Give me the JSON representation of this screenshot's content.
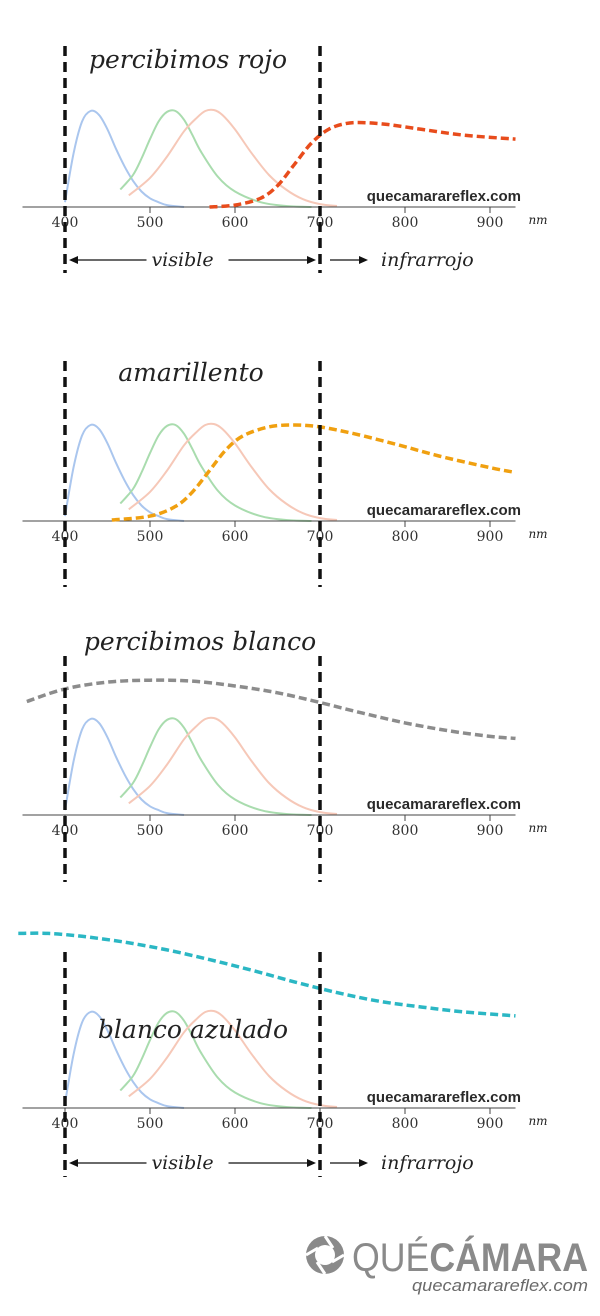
{
  "chart_data": [
    {
      "type": "line",
      "title": "percibimos rojo",
      "xlabel": "nm",
      "x_ticks": [
        400,
        500,
        600,
        700,
        800,
        900
      ],
      "xlim": [
        350,
        930
      ],
      "watermark": "quecamarareflex.com",
      "range_labels": {
        "visible": "visible",
        "infrared": "infrarrojo"
      },
      "series": [
        {
          "color": "#e84c1c",
          "dashed": true,
          "x": [
            570,
            600,
            630,
            650,
            670,
            690,
            710,
            730,
            750,
            780,
            820,
            870,
            930
          ],
          "y": [
            0.0,
            0.02,
            0.09,
            0.22,
            0.44,
            0.66,
            0.8,
            0.86,
            0.87,
            0.85,
            0.8,
            0.74,
            0.7
          ]
        }
      ]
    },
    {
      "type": "line",
      "title": "amarillento",
      "xlabel": "nm",
      "x_ticks": [
        400,
        500,
        600,
        700,
        800,
        900
      ],
      "xlim": [
        350,
        930
      ],
      "watermark": "quecamarareflex.com",
      "series": [
        {
          "color": "#f0a010",
          "dashed": true,
          "x": [
            455,
            500,
            530,
            550,
            570,
            590,
            610,
            640,
            670,
            700,
            740,
            790,
            840,
            900,
            930
          ],
          "y": [
            0.01,
            0.05,
            0.15,
            0.3,
            0.52,
            0.74,
            0.88,
            0.97,
            0.99,
            0.97,
            0.9,
            0.79,
            0.67,
            0.55,
            0.5
          ]
        }
      ]
    },
    {
      "type": "line",
      "title": "percibimos blanco",
      "xlabel": "nm",
      "x_ticks": [
        400,
        500,
        600,
        700,
        800,
        900
      ],
      "xlim": [
        350,
        930
      ],
      "watermark": "quecamarareflex.com",
      "series": [
        {
          "color": "#8c8c8c",
          "dashed": true,
          "x": [
            355,
            400,
            450,
            500,
            550,
            600,
            650,
            700,
            750,
            800,
            850,
            900,
            930
          ],
          "y": [
            1.17,
            1.3,
            1.37,
            1.39,
            1.38,
            1.33,
            1.26,
            1.16,
            1.05,
            0.95,
            0.87,
            0.81,
            0.79
          ]
        }
      ]
    },
    {
      "type": "line",
      "title": "blanco azulado",
      "xlabel": "nm",
      "x_ticks": [
        400,
        500,
        600,
        700,
        800,
        900
      ],
      "xlim": [
        350,
        930
      ],
      "watermark": "quecamarareflex.com",
      "range_labels": {
        "visible": "visible",
        "infrared": "infrarrojo"
      },
      "series": [
        {
          "color": "#2bb7c4",
          "dashed": true,
          "x": [
            345,
            380,
            420,
            470,
            520,
            570,
            620,
            670,
            720,
            770,
            820,
            870,
            930
          ],
          "y": [
            1.8,
            1.8,
            1.77,
            1.71,
            1.63,
            1.53,
            1.42,
            1.3,
            1.19,
            1.1,
            1.04,
            0.99,
            0.95
          ]
        }
      ]
    }
  ],
  "cone_curves": [
    {
      "color": "#aac6ee",
      "x": [
        400,
        410,
        420,
        430,
        440,
        450,
        460,
        470,
        480,
        490,
        500,
        510,
        520,
        540
      ],
      "y": [
        0.05,
        0.55,
        0.88,
        0.99,
        0.95,
        0.8,
        0.6,
        0.42,
        0.27,
        0.16,
        0.09,
        0.05,
        0.02,
        0.0
      ]
    },
    {
      "color": "#a9dcae",
      "x": [
        465,
        480,
        490,
        500,
        510,
        520,
        530,
        540,
        550,
        560,
        580,
        600,
        630,
        660,
        690
      ],
      "y": [
        0.18,
        0.33,
        0.5,
        0.7,
        0.88,
        0.98,
        0.99,
        0.9,
        0.74,
        0.57,
        0.31,
        0.16,
        0.05,
        0.01,
        0.0
      ]
    },
    {
      "color": "#f6c8b8",
      "x": [
        475,
        500,
        520,
        540,
        555,
        565,
        575,
        585,
        600,
        620,
        640,
        660,
        680,
        700,
        720
      ],
      "y": [
        0.12,
        0.3,
        0.52,
        0.78,
        0.92,
        0.99,
        1.0,
        0.95,
        0.8,
        0.55,
        0.33,
        0.18,
        0.08,
        0.03,
        0.01
      ]
    }
  ],
  "footer": {
    "logo_prefix": "QUÉ",
    "logo_bold": "CÁMARA",
    "logo_url": "quecamarareflex.com"
  }
}
